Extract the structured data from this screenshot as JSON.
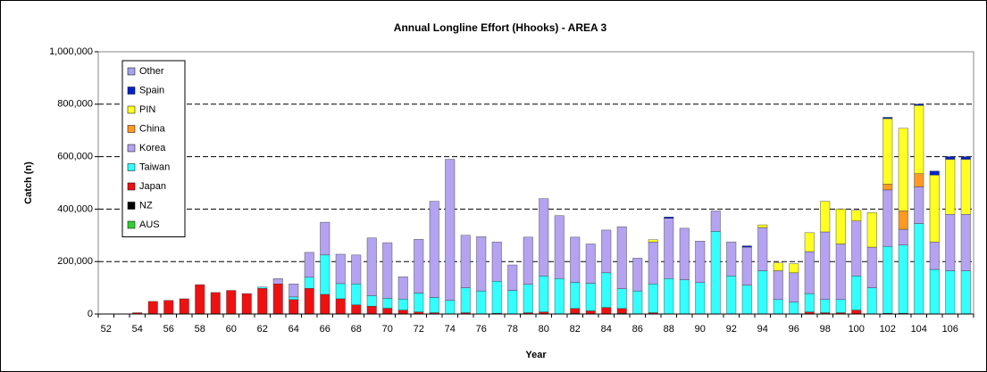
{
  "chart_data": {
    "type": "stacked_bar",
    "title": "Annual Longline Effort (Hhooks) - AREA 3",
    "x_label": "Year",
    "y_label": "Catch (n)",
    "categories": [
      "52",
      null,
      "54",
      null,
      "56",
      null,
      "58",
      null,
      "60",
      null,
      "62",
      null,
      "64",
      null,
      "66",
      null,
      "68",
      null,
      "70",
      null,
      "72",
      null,
      "74",
      null,
      "76",
      null,
      "78",
      null,
      "80",
      null,
      "82",
      null,
      "84",
      null,
      "86",
      null,
      "88",
      null,
      "90",
      null,
      "92",
      null,
      "94",
      null,
      "96",
      null,
      "98",
      null,
      "100",
      null,
      "102",
      null,
      "104",
      null,
      "106",
      null
    ],
    "series": [
      {
        "name": "AUS",
        "color": "#33cc33",
        "values": [
          0,
          0,
          0,
          0,
          0,
          0,
          0,
          0,
          0,
          0,
          0,
          0,
          0,
          0,
          0,
          0,
          0,
          0,
          0,
          0,
          0,
          0,
          0,
          0,
          0,
          0,
          0,
          0,
          0,
          0,
          0,
          0,
          0,
          0,
          0,
          0,
          0,
          0,
          0,
          0,
          0,
          0,
          0,
          0,
          0,
          0,
          0,
          0,
          0,
          0,
          0,
          0,
          0,
          0,
          0,
          0
        ]
      },
      {
        "name": "NZ",
        "color": "#000000",
        "values": [
          0,
          0,
          0,
          0,
          0,
          0,
          0,
          0,
          0,
          0,
          0,
          0,
          0,
          0,
          0,
          0,
          0,
          0,
          0,
          0,
          0,
          0,
          0,
          0,
          0,
          0,
          0,
          0,
          0,
          0,
          3000,
          0,
          0,
          3000,
          0,
          0,
          0,
          0,
          0,
          0,
          0,
          0,
          0,
          0,
          0,
          0,
          0,
          0,
          0,
          0,
          3000,
          3000,
          0,
          0,
          0,
          0
        ]
      },
      {
        "name": "Japan",
        "color": "#ee1111",
        "values": [
          0,
          0,
          5000,
          48000,
          52000,
          58000,
          112000,
          82000,
          90000,
          78000,
          98000,
          115000,
          55000,
          98000,
          75000,
          58000,
          35000,
          30000,
          22000,
          15000,
          8000,
          5000,
          0,
          5000,
          0,
          3000,
          0,
          5000,
          8000,
          0,
          18000,
          12000,
          25000,
          18000,
          0,
          5000,
          0,
          0,
          0,
          0,
          0,
          0,
          0,
          0,
          0,
          8000,
          5000,
          5000,
          15000,
          0,
          0,
          0,
          0,
          0,
          0,
          0
        ]
      },
      {
        "name": "Taiwan",
        "color": "#33ffff",
        "values": [
          0,
          0,
          0,
          0,
          0,
          0,
          0,
          0,
          0,
          0,
          5000,
          0,
          10000,
          42000,
          150000,
          58000,
          80000,
          40000,
          38000,
          42000,
          72000,
          58000,
          52000,
          95000,
          88000,
          122000,
          90000,
          108000,
          137000,
          135000,
          100000,
          105000,
          132000,
          75000,
          88000,
          110000,
          135000,
          130000,
          120000,
          315000,
          145000,
          110000,
          165000,
          55000,
          45000,
          70000,
          50000,
          50000,
          130000,
          100000,
          255000,
          260000,
          345000,
          170000,
          165000,
          165000
        ]
      },
      {
        "name": "Korea",
        "color": "#b3a3f0",
        "values": [
          0,
          0,
          0,
          0,
          0,
          0,
          0,
          0,
          0,
          0,
          0,
          20000,
          50000,
          95000,
          125000,
          112000,
          110000,
          220000,
          212000,
          85000,
          205000,
          367000,
          538000,
          200000,
          207000,
          150000,
          97000,
          180000,
          295000,
          240000,
          172000,
          150000,
          163000,
          237000,
          125000,
          160000,
          230000,
          197000,
          158000,
          78000,
          130000,
          145000,
          165000,
          110000,
          112000,
          160000,
          258000,
          212000,
          210000,
          155000,
          215000,
          60000,
          140000,
          105000,
          215000,
          215000
        ]
      },
      {
        "name": "China",
        "color": "#ff9922",
        "values": [
          0,
          0,
          0,
          0,
          0,
          0,
          0,
          0,
          0,
          0,
          0,
          0,
          0,
          0,
          0,
          0,
          0,
          0,
          0,
          0,
          0,
          0,
          0,
          0,
          0,
          0,
          0,
          0,
          0,
          0,
          0,
          0,
          0,
          0,
          0,
          0,
          0,
          0,
          0,
          0,
          0,
          0,
          0,
          0,
          0,
          0,
          0,
          0,
          0,
          0,
          22000,
          70000,
          50000,
          0,
          0,
          0
        ]
      },
      {
        "name": "PIN",
        "color": "#ffff22",
        "values": [
          0,
          0,
          0,
          0,
          0,
          0,
          0,
          0,
          0,
          0,
          0,
          0,
          0,
          0,
          0,
          0,
          0,
          0,
          0,
          0,
          0,
          0,
          0,
          0,
          0,
          0,
          0,
          0,
          0,
          0,
          0,
          0,
          0,
          0,
          0,
          8000,
          0,
          0,
          0,
          0,
          0,
          0,
          10000,
          30000,
          35000,
          72000,
          117000,
          133000,
          40000,
          132000,
          250000,
          315000,
          260000,
          255000,
          210000,
          210000
        ]
      },
      {
        "name": "Spain",
        "color": "#0022cc",
        "values": [
          0,
          0,
          0,
          0,
          0,
          0,
          0,
          0,
          0,
          0,
          0,
          0,
          0,
          0,
          0,
          0,
          0,
          0,
          0,
          0,
          0,
          0,
          0,
          0,
          0,
          0,
          0,
          0,
          0,
          0,
          0,
          0,
          0,
          0,
          0,
          0,
          5000,
          0,
          0,
          0,
          0,
          5000,
          0,
          0,
          0,
          0,
          0,
          0,
          0,
          0,
          5000,
          0,
          5000,
          15000,
          10000,
          10000
        ]
      },
      {
        "name": "Other",
        "color": "#a8a0f0",
        "values": [
          0,
          0,
          0,
          0,
          0,
          0,
          0,
          0,
          0,
          0,
          0,
          0,
          0,
          0,
          0,
          0,
          0,
          0,
          0,
          0,
          0,
          0,
          0,
          0,
          0,
          0,
          0,
          0,
          0,
          0,
          0,
          0,
          0,
          0,
          0,
          0,
          0,
          0,
          0,
          0,
          0,
          0,
          0,
          0,
          0,
          0,
          0,
          0,
          0,
          0,
          0,
          0,
          0,
          0,
          0,
          0
        ]
      }
    ],
    "ylim": [
      0,
      1000000
    ],
    "yticks": [
      0,
      {
        "value": 200000,
        "label": "200,000"
      },
      {
        "value": 400000,
        "label": "400,000"
      },
      {
        "value": 600000,
        "label": "600,000"
      },
      {
        "value": 800000,
        "label": "800,000"
      },
      {
        "value": 1000000,
        "label": "1,000,000"
      }
    ],
    "grid": true,
    "legend": "upper left"
  }
}
